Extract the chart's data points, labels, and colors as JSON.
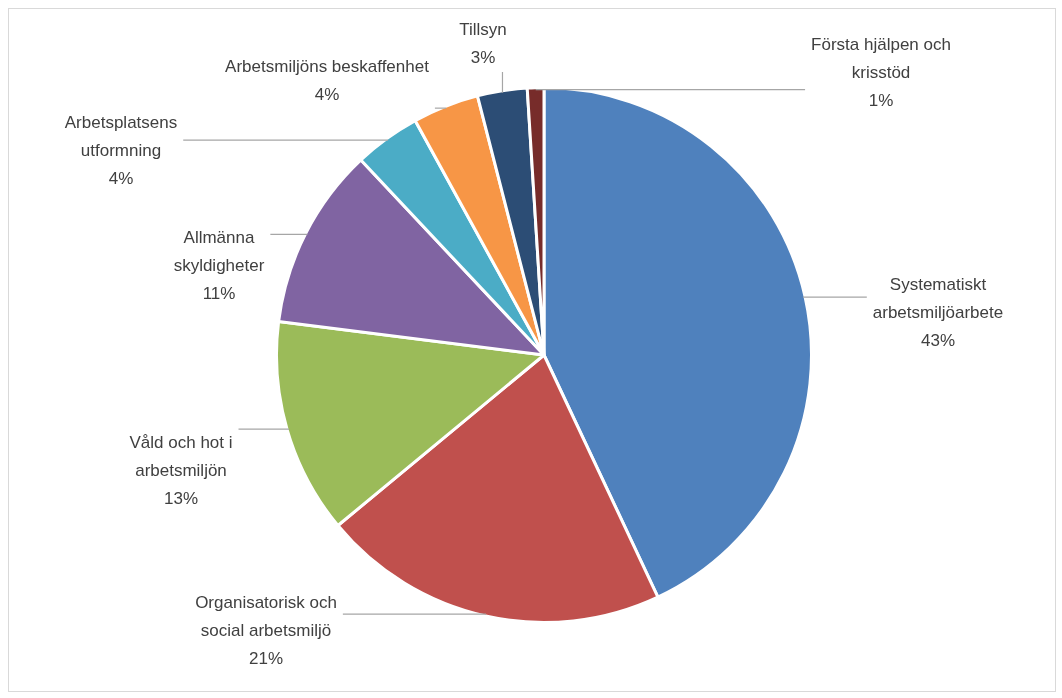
{
  "chart_data": {
    "type": "pie",
    "categories": [
      "Systematiskt arbetsmiljöarbete",
      "Organisatorisk och social arbetsmiljö",
      "Våld och hot i arbetsmiljön",
      "Allmänna skyldigheter",
      "Arbetsplatsens utformning",
      "Arbetsmiljöns beskaffenhet",
      "Tillsyn",
      "Första hjälpen och krisstöd"
    ],
    "values": [
      43,
      21,
      13,
      11,
      4,
      4,
      3,
      1
    ],
    "value_labels": [
      "43%",
      "21%",
      "13%",
      "11%",
      "4%",
      "4%",
      "3%",
      "1%"
    ],
    "colors": [
      "#4f81bd",
      "#c0504d",
      "#9bbb59",
      "#8064a2",
      "#4bacc6",
      "#f79646",
      "#2c4d75",
      "#772c2a"
    ],
    "legend": false
  }
}
